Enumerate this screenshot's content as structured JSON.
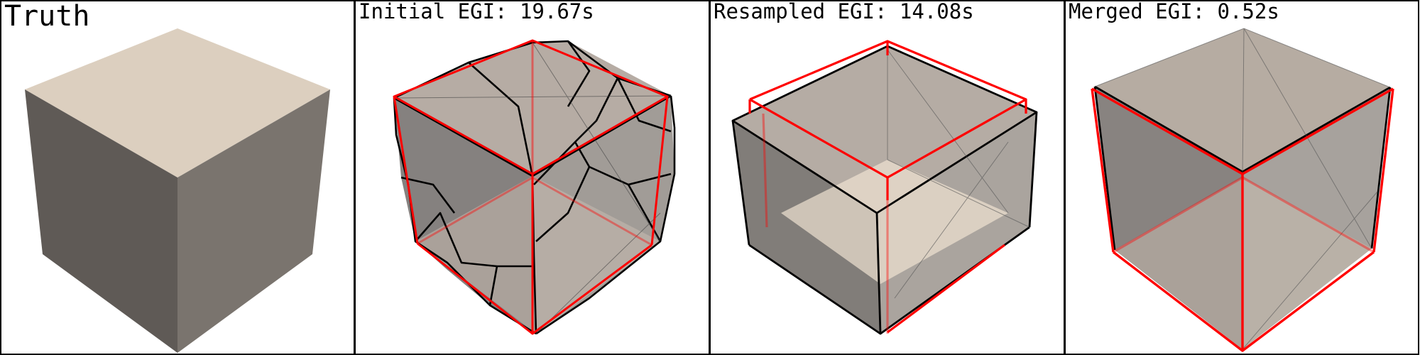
{
  "panels": [
    {
      "id": "truth",
      "title": "Truth"
    },
    {
      "id": "initial",
      "title": "Initial EGI: 19.67s"
    },
    {
      "id": "resampled",
      "title": "Resampled EGI: 14.08s"
    },
    {
      "id": "merged",
      "title": "Merged EGI: 0.52s"
    }
  ],
  "colors": {
    "background": "#ffffff",
    "border": "#000000",
    "top_face": "#dccfbf",
    "left_face": "#5f5a56",
    "right_face": "#7a746e",
    "reconstruction_edge": "#000000",
    "truth_edge": "#ff0000"
  }
}
